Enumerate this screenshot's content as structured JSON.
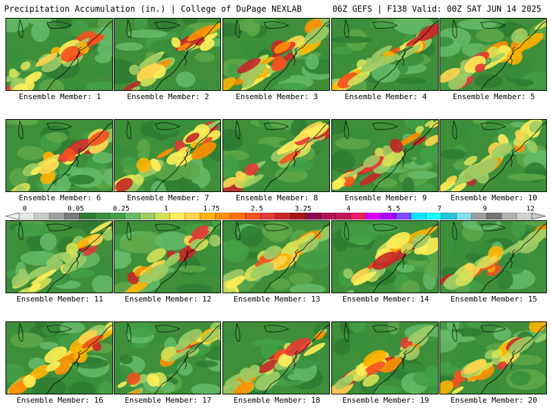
{
  "header": {
    "title_left": "Precipitation Accumulation (in.) | College of DuPage NEXLAB",
    "title_right": "06Z GEFS | F138 Valid: 00Z SAT JUN 14 2025"
  },
  "panels": [
    {
      "label": "Ensemble Member: 1"
    },
    {
      "label": "Ensemble Member: 2"
    },
    {
      "label": "Ensemble Member: 3"
    },
    {
      "label": "Ensemble Member: 4"
    },
    {
      "label": "Ensemble Member: 5"
    },
    {
      "label": "Ensemble Member: 6"
    },
    {
      "label": "Ensemble Member: 7"
    },
    {
      "label": "Ensemble Member: 8"
    },
    {
      "label": "Ensemble Member: 9"
    },
    {
      "label": "Ensemble Member: 10"
    },
    {
      "label": "Ensemble Member: 11"
    },
    {
      "label": "Ensemble Member: 12"
    },
    {
      "label": "Ensemble Member: 13"
    },
    {
      "label": "Ensemble Member: 14"
    },
    {
      "label": "Ensemble Member: 15"
    },
    {
      "label": "Ensemble Member: 16"
    },
    {
      "label": "Ensemble Member: 17"
    },
    {
      "label": "Ensemble Member: 18"
    },
    {
      "label": "Ensemble Member: 19"
    },
    {
      "label": "Ensemble Member: 20"
    }
  ],
  "colorbar": {
    "labels": [
      "0",
      "0.05",
      "0.25",
      "1",
      "1.75",
      "2.5",
      "3.25",
      "4",
      "5.5",
      "7",
      "9",
      "12"
    ],
    "colors": [
      "#e6e6e6",
      "#c8c8c8",
      "#a0a0a0",
      "#7a7a7a",
      "#2e7d32",
      "#388e3c",
      "#43a047",
      "#66bb6a",
      "#9ccc65",
      "#d4e157",
      "#ffee58",
      "#ffd54f",
      "#ffb300",
      "#ff8f00",
      "#ff6f00",
      "#f4511e",
      "#e53935",
      "#c62828",
      "#a4161a",
      "#880e4f",
      "#ad1457",
      "#c2185b",
      "#e91e63",
      "#d500f9",
      "#aa00ff",
      "#7c4dff",
      "#00e5ff",
      "#18ffff",
      "#26c6da",
      "#80deea",
      "#9e9e9e",
      "#757575",
      "#b0b0b0",
      "#d0d0d0"
    ]
  }
}
